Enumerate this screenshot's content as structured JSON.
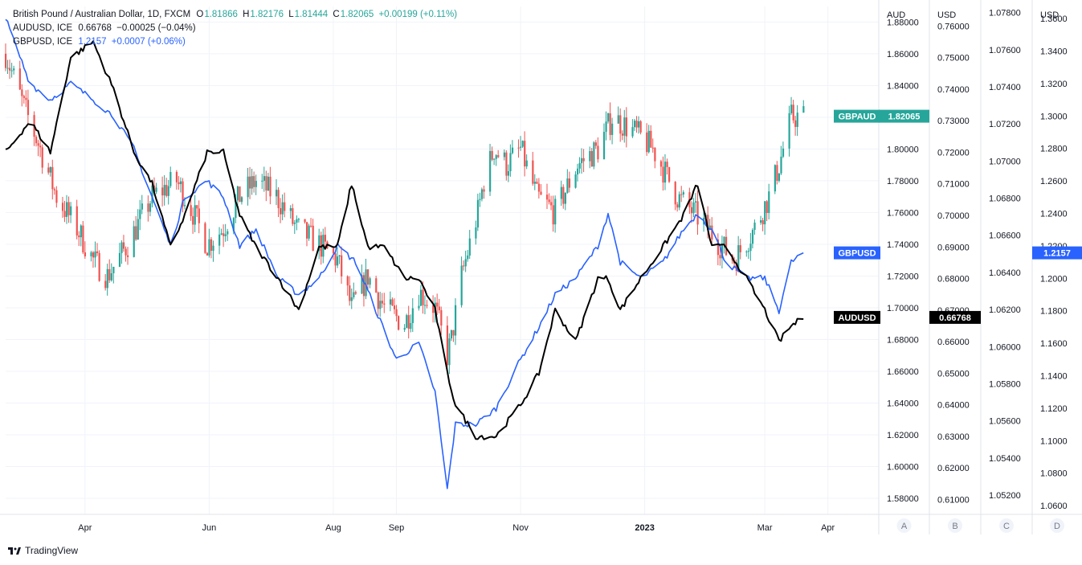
{
  "legend": {
    "main_symbol": "British Pound / Australian Dollar, 1D, FXCM",
    "open_label": "O",
    "open_value": "1.81866",
    "high_label": "H",
    "high_value": "1.82176",
    "low_label": "L",
    "low_value": "1.81444",
    "close_label": "C",
    "close_value": "1.82065",
    "change": "+0.00199 (+0.11%)",
    "audusd_symbol": "AUDUSD, ICE",
    "audusd_value": "0.66768",
    "audusd_change": "−0.00025 (−0.04%)",
    "gbpusd_symbol": "GBPUSD, ICE",
    "gbpusd_value": "1.2157",
    "gbpusd_change": "+0.0007 (+0.06%)"
  },
  "branding": {
    "text": "TradingView",
    "logo_icon": "tradingview-logo-icon"
  },
  "colors": {
    "up": "#26a69a",
    "down": "#ef5350",
    "gbpusd": "#2962ff",
    "audusd": "#000000",
    "grid": "#f0f3fa",
    "axis_text": "#131722"
  },
  "axes": {
    "A": {
      "header": "AUD",
      "footer": "A",
      "range": [
        1.56989,
        1.88979
      ],
      "ticks": [
        "1.88000",
        "1.86000",
        "1.84000",
        "1.82000",
        "1.80000",
        "1.78000",
        "1.76000",
        "1.74000",
        "1.72000",
        "1.70000",
        "1.68000",
        "1.66000",
        "1.64000",
        "1.62000",
        "1.60000",
        "1.58000"
      ]
    },
    "B": {
      "header": "USD",
      "footer": "B",
      "range": [
        0.60527,
        0.76621
      ],
      "ticks": [
        "0.76000",
        "0.75000",
        "0.74000",
        "0.73000",
        "0.72000",
        "0.71000",
        "0.70000",
        "0.69000",
        "0.68000",
        "0.67000",
        "0.66000",
        "0.65000",
        "0.64000",
        "0.63000",
        "0.62000",
        "0.61000"
      ]
    },
    "C": {
      "header": "",
      "footer": "C",
      "range": [
        1.05096,
        1.07833
      ],
      "ticks": [
        "1.07800",
        "1.07600",
        "1.07400",
        "1.07200",
        "1.07000",
        "1.06800",
        "1.06600",
        "1.06400",
        "1.06200",
        "1.06000",
        "1.05800",
        "1.05600",
        "1.05400",
        "1.05200"
      ]
    },
    "D": {
      "header": "USD",
      "footer": "D",
      "range": [
        1.0546,
        1.3675
      ],
      "ticks": [
        "1.3600",
        "1.3400",
        "1.3200",
        "1.3000",
        "1.2800",
        "1.2600",
        "1.2400",
        "1.2200",
        "1.2000",
        "1.1800",
        "1.1600",
        "1.1400",
        "1.1200",
        "1.1000",
        "1.0800",
        "1.0600"
      ]
    }
  },
  "badges": [
    {
      "name": "GBPAUD",
      "value": "1.82065",
      "axis": "A",
      "color": "#26a69a",
      "text_color": "#ffffff"
    },
    {
      "name": "GBPUSD",
      "value": "1.2157",
      "axis": "D",
      "color": "#2962ff",
      "text_color": "#ffffff"
    },
    {
      "name": "AUDUSD",
      "value": "0.66768",
      "axis": "B",
      "color": "#000000",
      "text_color": "#ffffff"
    }
  ],
  "chart_data": {
    "type": "line",
    "title": "British Pound / Australian Dollar, 1D, FXCM",
    "x_range": [
      "2022-02-21",
      "2023-04-26"
    ],
    "x_ticks": [
      {
        "label": "Apr",
        "date": "2022-04-01"
      },
      {
        "label": "Jun",
        "date": "2022-06-01"
      },
      {
        "label": "Aug",
        "date": "2022-08-01"
      },
      {
        "label": "Sep",
        "date": "2022-09-01"
      },
      {
        "label": "Nov",
        "date": "2022-11-01"
      },
      {
        "label": "2023",
        "date": "2023-01-01"
      },
      {
        "label": "Mar",
        "date": "2023-03-01"
      },
      {
        "label": "Apr",
        "date": "2023-04-01"
      }
    ],
    "grid": true,
    "series": [
      {
        "name": "GBPAUD",
        "kind": "candlestick",
        "axis": "A",
        "points": [
          [
            "2022-02-21",
            1.86
          ],
          [
            "2022-03-01",
            1.83
          ],
          [
            "2022-03-10",
            1.8
          ],
          [
            "2022-03-18",
            1.77
          ],
          [
            "2022-03-28",
            1.75
          ],
          [
            "2022-04-05",
            1.73
          ],
          [
            "2022-04-12",
            1.72
          ],
          [
            "2022-04-22",
            1.74
          ],
          [
            "2022-05-04",
            1.77
          ],
          [
            "2022-05-16",
            1.78
          ],
          [
            "2022-05-24",
            1.76
          ],
          [
            "2022-05-31",
            1.74
          ],
          [
            "2022-06-08",
            1.75
          ],
          [
            "2022-06-16",
            1.77
          ],
          [
            "2022-06-24",
            1.78
          ],
          [
            "2022-07-04",
            1.77
          ],
          [
            "2022-07-14",
            1.75
          ],
          [
            "2022-07-25",
            1.74
          ],
          [
            "2022-08-03",
            1.73
          ],
          [
            "2022-08-10",
            1.7
          ],
          [
            "2022-08-18",
            1.72
          ],
          [
            "2022-08-26",
            1.7
          ],
          [
            "2022-09-05",
            1.69
          ],
          [
            "2022-09-12",
            1.71
          ],
          [
            "2022-09-20",
            1.7
          ],
          [
            "2022-09-26",
            1.67
          ],
          [
            "2022-09-28",
            1.68
          ],
          [
            "2022-10-03",
            1.72
          ],
          [
            "2022-10-07",
            1.74
          ],
          [
            "2022-10-11",
            1.76
          ],
          [
            "2022-10-14",
            1.78
          ],
          [
            "2022-10-19",
            1.8
          ],
          [
            "2022-10-25",
            1.79
          ],
          [
            "2022-11-01",
            1.8
          ],
          [
            "2022-11-09",
            1.77
          ],
          [
            "2022-11-18",
            1.76
          ],
          [
            "2022-11-29",
            1.79
          ],
          [
            "2022-12-09",
            1.8
          ],
          [
            "2022-12-16",
            1.82
          ],
          [
            "2022-12-28",
            1.81
          ],
          [
            "2023-01-05",
            1.8
          ],
          [
            "2023-01-17",
            1.77
          ],
          [
            "2023-01-25",
            1.76
          ],
          [
            "2023-02-01",
            1.75
          ],
          [
            "2023-02-07",
            1.74
          ],
          [
            "2023-02-14",
            1.73
          ],
          [
            "2023-02-24",
            1.75
          ],
          [
            "2023-03-03",
            1.77
          ],
          [
            "2023-03-08",
            1.79
          ],
          [
            "2023-03-14",
            1.82
          ],
          [
            "2023-03-20",
            1.82065
          ]
        ]
      },
      {
        "name": "GBPUSD",
        "kind": "line",
        "axis": "D",
        "points": [
          [
            "2022-02-21",
            1.36
          ],
          [
            "2022-03-05",
            1.32
          ],
          [
            "2022-03-15",
            1.31
          ],
          [
            "2022-03-25",
            1.32
          ],
          [
            "2022-04-05",
            1.31
          ],
          [
            "2022-04-15",
            1.3
          ],
          [
            "2022-04-25",
            1.28
          ],
          [
            "2022-05-04",
            1.25
          ],
          [
            "2022-05-13",
            1.22
          ],
          [
            "2022-05-20",
            1.25
          ],
          [
            "2022-05-31",
            1.26
          ],
          [
            "2022-06-08",
            1.25
          ],
          [
            "2022-06-16",
            1.22
          ],
          [
            "2022-06-24",
            1.23
          ],
          [
            "2022-07-05",
            1.2
          ],
          [
            "2022-07-15",
            1.19
          ],
          [
            "2022-07-25",
            1.2
          ],
          [
            "2022-08-03",
            1.22
          ],
          [
            "2022-08-12",
            1.21
          ],
          [
            "2022-08-22",
            1.18
          ],
          [
            "2022-09-01",
            1.15
          ],
          [
            "2022-09-12",
            1.16
          ],
          [
            "2022-09-20",
            1.13
          ],
          [
            "2022-09-26",
            1.07
          ],
          [
            "2022-09-30",
            1.11
          ],
          [
            "2022-10-10",
            1.11
          ],
          [
            "2022-10-20",
            1.12
          ],
          [
            "2022-11-01",
            1.15
          ],
          [
            "2022-11-10",
            1.17
          ],
          [
            "2022-11-18",
            1.19
          ],
          [
            "2022-11-28",
            1.2
          ],
          [
            "2022-12-09",
            1.22
          ],
          [
            "2022-12-14",
            1.24
          ],
          [
            "2022-12-20",
            1.21
          ],
          [
            "2022-12-30",
            1.2
          ],
          [
            "2023-01-10",
            1.21
          ],
          [
            "2023-01-20",
            1.23
          ],
          [
            "2023-01-27",
            1.24
          ],
          [
            "2023-02-03",
            1.23
          ],
          [
            "2023-02-10",
            1.21
          ],
          [
            "2023-02-20",
            1.2
          ],
          [
            "2023-03-01",
            1.2
          ],
          [
            "2023-03-08",
            1.18
          ],
          [
            "2023-03-14",
            1.21
          ],
          [
            "2023-03-20",
            1.2157
          ]
        ]
      },
      {
        "name": "AUDUSD",
        "kind": "line",
        "axis": "B",
        "points": [
          [
            "2022-02-21",
            0.72
          ],
          [
            "2022-03-05",
            0.73
          ],
          [
            "2022-03-15",
            0.72
          ],
          [
            "2022-03-25",
            0.75
          ],
          [
            "2022-04-05",
            0.755
          ],
          [
            "2022-04-15",
            0.74
          ],
          [
            "2022-04-25",
            0.72
          ],
          [
            "2022-05-04",
            0.71
          ],
          [
            "2022-05-13",
            0.69
          ],
          [
            "2022-05-20",
            0.7
          ],
          [
            "2022-05-31",
            0.72
          ],
          [
            "2022-06-08",
            0.72
          ],
          [
            "2022-06-16",
            0.7
          ],
          [
            "2022-06-24",
            0.69
          ],
          [
            "2022-07-05",
            0.68
          ],
          [
            "2022-07-15",
            0.67
          ],
          [
            "2022-07-25",
            0.69
          ],
          [
            "2022-08-03",
            0.69
          ],
          [
            "2022-08-10",
            0.71
          ],
          [
            "2022-08-18",
            0.69
          ],
          [
            "2022-08-26",
            0.69
          ],
          [
            "2022-09-05",
            0.68
          ],
          [
            "2022-09-12",
            0.68
          ],
          [
            "2022-09-20",
            0.67
          ],
          [
            "2022-09-26",
            0.65
          ],
          [
            "2022-09-30",
            0.64
          ],
          [
            "2022-10-10",
            0.63
          ],
          [
            "2022-10-20",
            0.63
          ],
          [
            "2022-11-01",
            0.64
          ],
          [
            "2022-11-10",
            0.65
          ],
          [
            "2022-11-18",
            0.67
          ],
          [
            "2022-11-28",
            0.66
          ],
          [
            "2022-12-09",
            0.68
          ],
          [
            "2022-12-14",
            0.68
          ],
          [
            "2022-12-20",
            0.67
          ],
          [
            "2022-12-30",
            0.68
          ],
          [
            "2023-01-10",
            0.69
          ],
          [
            "2023-01-20",
            0.7
          ],
          [
            "2023-01-27",
            0.71
          ],
          [
            "2023-02-03",
            0.69
          ],
          [
            "2023-02-10",
            0.69
          ],
          [
            "2023-02-20",
            0.68
          ],
          [
            "2023-03-01",
            0.67
          ],
          [
            "2023-03-08",
            0.66
          ],
          [
            "2023-03-14",
            0.665
          ],
          [
            "2023-03-20",
            0.66768
          ]
        ]
      }
    ]
  }
}
